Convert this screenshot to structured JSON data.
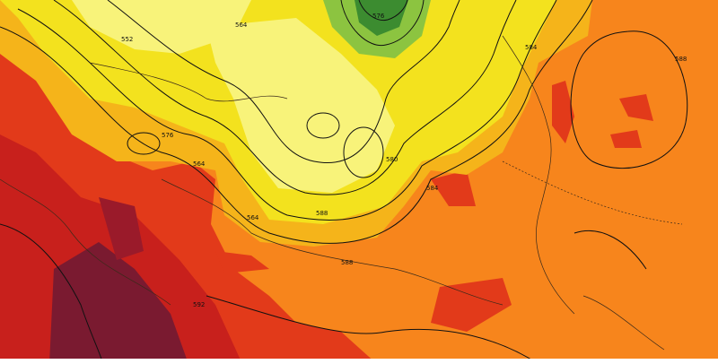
{
  "map": {
    "contour_labels": [
      "552",
      "564",
      "576",
      "584",
      "588",
      "588",
      "576",
      "564",
      "564",
      "580",
      "584",
      "588",
      "592"
    ]
  }
}
